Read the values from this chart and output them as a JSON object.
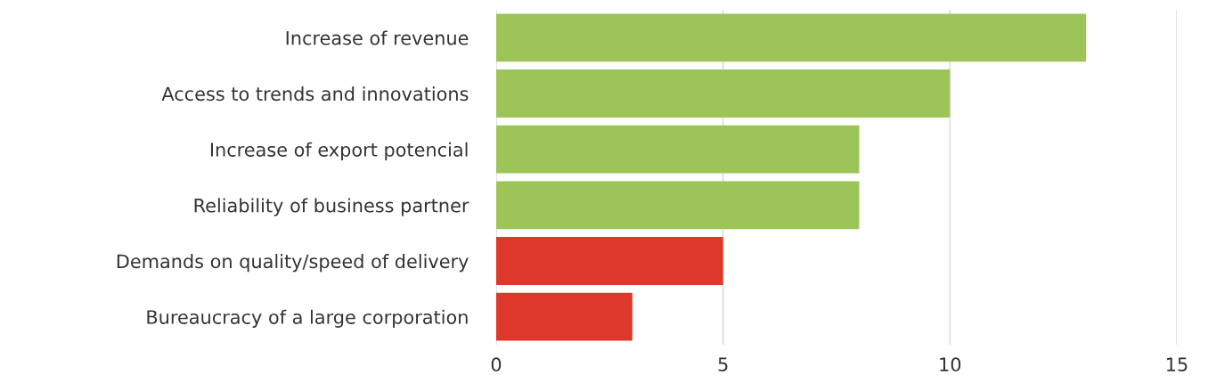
{
  "chart_data": {
    "type": "bar",
    "orientation": "horizontal",
    "categories": [
      "Increase of revenue",
      "Access to trends and innovations",
      "Increase of export potencial",
      "Reliability of business partner",
      "Demands on quality/speed of delivery",
      "Bureaucracy of a large corporation"
    ],
    "values": [
      13,
      10,
      8,
      8,
      5,
      3
    ],
    "colors": [
      "#9cc457",
      "#9cc457",
      "#9cc457",
      "#9cc457",
      "#de382c",
      "#de382c"
    ],
    "xlim": [
      0,
      15
    ],
    "xticks": [
      0,
      5,
      10,
      15
    ],
    "grid": "x",
    "legend": false
  }
}
